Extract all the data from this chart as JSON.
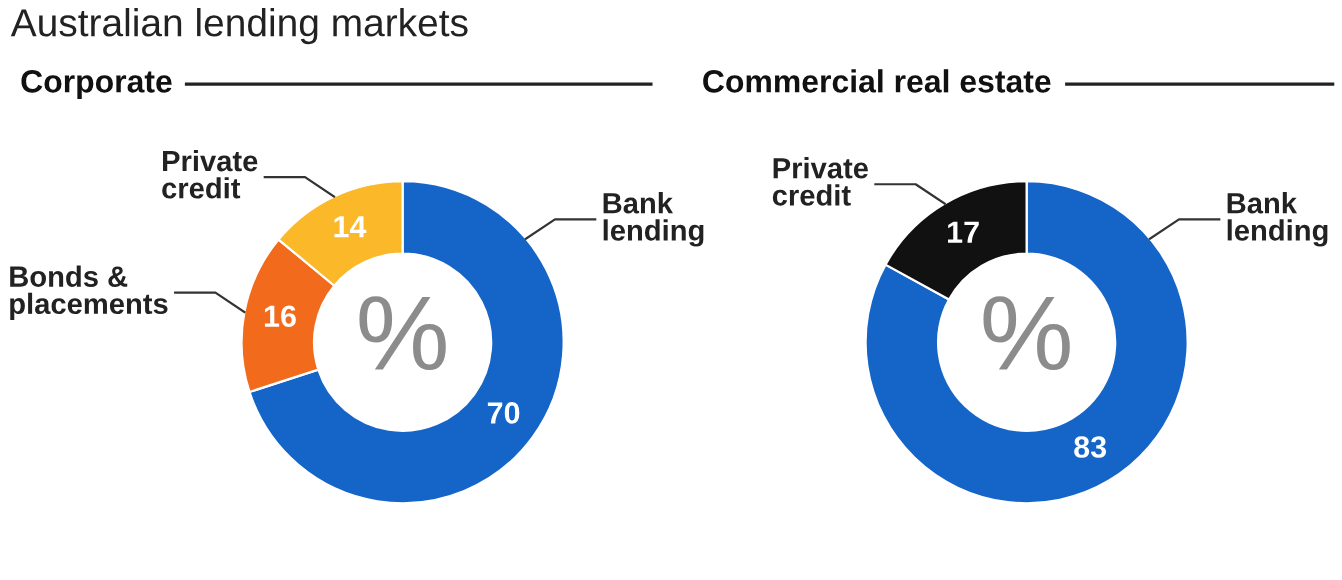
{
  "chart_data": [
    {
      "type": "donut",
      "title": "Australian lending markets",
      "subtitle": "Corporate",
      "categories": [
        "Bank lending",
        "Bonds & placements",
        "Private credit"
      ],
      "values": [
        70,
        16,
        14
      ],
      "colors": [
        "#1565c8",
        "#f26a1b",
        "#fbb829"
      ],
      "data_labels": true,
      "annotations": [
        "%"
      ]
    },
    {
      "type": "donut",
      "subtitle": "Commercial real estate",
      "categories": [
        "Bank lending",
        "Private credit"
      ],
      "values": [
        83,
        17
      ],
      "colors": [
        "#1565c8",
        "#111111"
      ],
      "data_labels": true,
      "annotations": [
        "%"
      ]
    }
  ]
}
